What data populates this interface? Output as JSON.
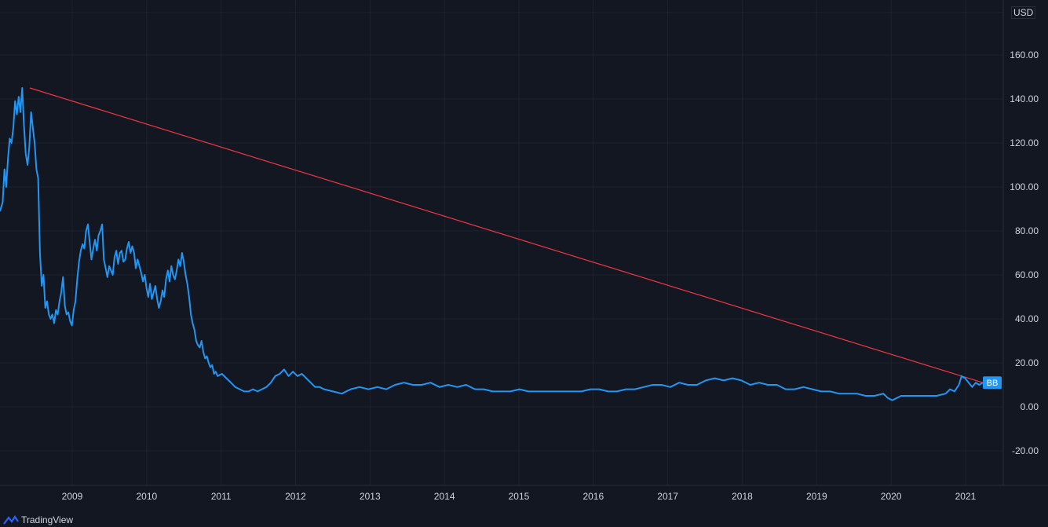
{
  "currency": "USD",
  "ticker_label": "BB",
  "watermark": "TradingView",
  "colors": {
    "background": "#131722",
    "grid": "#1e222d",
    "price_line": "#2196f3",
    "trend_line": "#f23645",
    "axis_text": "#d1d4dc",
    "label_bg": "#2196f3"
  },
  "chart_data": {
    "type": "line",
    "y_ticks": [
      -20,
      0,
      20,
      40,
      60,
      80,
      100,
      120,
      140,
      160
    ],
    "ylim": [
      -35,
      182
    ],
    "x_ticks": [
      "2009",
      "2010",
      "2011",
      "2012",
      "2013",
      "2014",
      "2015",
      "2016",
      "2017",
      "2018",
      "2019",
      "2020",
      "2021"
    ],
    "xlim": [
      2008.05,
      2021.5
    ],
    "grid": true,
    "series": [
      {
        "points": [
          [
            2008.05,
            89
          ],
          [
            2008.08,
            93
          ],
          [
            2008.1,
            108
          ],
          [
            2008.12,
            100
          ],
          [
            2008.14,
            113
          ],
          [
            2008.16,
            122
          ],
          [
            2008.18,
            120
          ],
          [
            2008.2,
            127
          ],
          [
            2008.22,
            139
          ],
          [
            2008.24,
            133
          ],
          [
            2008.26,
            141
          ],
          [
            2008.28,
            134
          ],
          [
            2008.3,
            145
          ],
          [
            2008.32,
            128
          ],
          [
            2008.34,
            115
          ],
          [
            2008.36,
            110
          ],
          [
            2008.38,
            118
          ],
          [
            2008.4,
            134
          ],
          [
            2008.42,
            127
          ],
          [
            2008.44,
            120
          ],
          [
            2008.46,
            108
          ],
          [
            2008.48,
            104
          ],
          [
            2008.5,
            70
          ],
          [
            2008.52,
            55
          ],
          [
            2008.54,
            60
          ],
          [
            2008.56,
            45
          ],
          [
            2008.58,
            48
          ],
          [
            2008.6,
            42
          ],
          [
            2008.62,
            40
          ],
          [
            2008.64,
            42
          ],
          [
            2008.66,
            38
          ],
          [
            2008.68,
            44
          ],
          [
            2008.7,
            42
          ],
          [
            2008.72,
            48
          ],
          [
            2008.74,
            52
          ],
          [
            2008.76,
            59
          ],
          [
            2008.78,
            46
          ],
          [
            2008.8,
            42
          ],
          [
            2008.82,
            43
          ],
          [
            2008.84,
            39
          ],
          [
            2008.86,
            37
          ],
          [
            2008.88,
            44
          ],
          [
            2008.9,
            48
          ],
          [
            2008.92,
            58
          ],
          [
            2008.94,
            66
          ],
          [
            2008.96,
            71
          ],
          [
            2008.98,
            74
          ],
          [
            2009.0,
            72
          ],
          [
            2009.02,
            80
          ],
          [
            2009.04,
            83
          ],
          [
            2009.06,
            75
          ],
          [
            2009.08,
            67
          ],
          [
            2009.1,
            72
          ],
          [
            2009.12,
            76
          ],
          [
            2009.14,
            71
          ],
          [
            2009.16,
            78
          ],
          [
            2009.18,
            80
          ],
          [
            2009.2,
            83
          ],
          [
            2009.22,
            67
          ],
          [
            2009.24,
            63
          ],
          [
            2009.26,
            59
          ],
          [
            2009.28,
            64
          ],
          [
            2009.3,
            62
          ],
          [
            2009.32,
            60
          ],
          [
            2009.34,
            68
          ],
          [
            2009.36,
            71
          ],
          [
            2009.38,
            65
          ],
          [
            2009.4,
            70
          ],
          [
            2009.42,
            71
          ],
          [
            2009.44,
            66
          ],
          [
            2009.46,
            67
          ],
          [
            2009.48,
            72
          ],
          [
            2009.5,
            75
          ],
          [
            2009.52,
            70
          ],
          [
            2009.54,
            73
          ],
          [
            2009.56,
            70
          ],
          [
            2009.58,
            63
          ],
          [
            2009.6,
            67
          ],
          [
            2009.62,
            64
          ],
          [
            2009.64,
            61
          ],
          [
            2009.66,
            57
          ],
          [
            2009.68,
            60
          ],
          [
            2009.7,
            54
          ],
          [
            2009.72,
            50
          ],
          [
            2009.74,
            56
          ],
          [
            2009.76,
            49
          ],
          [
            2009.78,
            52
          ],
          [
            2009.8,
            55
          ],
          [
            2009.82,
            49
          ],
          [
            2009.84,
            45
          ],
          [
            2009.86,
            48
          ],
          [
            2009.88,
            53
          ],
          [
            2009.9,
            50
          ],
          [
            2009.92,
            58
          ],
          [
            2009.94,
            62
          ],
          [
            2009.96,
            57
          ],
          [
            2009.98,
            64
          ],
          [
            2010.0,
            60
          ],
          [
            2010.02,
            58
          ],
          [
            2010.04,
            62
          ],
          [
            2010.06,
            67
          ],
          [
            2010.08,
            64
          ],
          [
            2010.1,
            70
          ],
          [
            2010.12,
            66
          ],
          [
            2010.14,
            60
          ],
          [
            2010.16,
            56
          ],
          [
            2010.18,
            50
          ],
          [
            2010.2,
            42
          ],
          [
            2010.22,
            38
          ],
          [
            2010.24,
            35
          ],
          [
            2010.26,
            30
          ],
          [
            2010.28,
            28
          ],
          [
            2010.3,
            27
          ],
          [
            2010.32,
            30
          ],
          [
            2010.34,
            25
          ],
          [
            2010.36,
            22
          ],
          [
            2010.38,
            23
          ],
          [
            2010.4,
            20
          ],
          [
            2010.42,
            18
          ],
          [
            2010.44,
            19
          ],
          [
            2010.46,
            15
          ],
          [
            2010.48,
            16
          ],
          [
            2010.5,
            14
          ],
          [
            2010.55,
            15
          ],
          [
            2010.6,
            13
          ],
          [
            2010.65,
            11
          ],
          [
            2010.7,
            9
          ],
          [
            2010.75,
            8
          ],
          [
            2010.8,
            7
          ],
          [
            2010.85,
            7
          ],
          [
            2010.9,
            8
          ],
          [
            2010.95,
            7
          ],
          [
            2011.0,
            8
          ],
          [
            2011.05,
            9
          ],
          [
            2011.1,
            11
          ],
          [
            2011.15,
            14
          ],
          [
            2011.2,
            15
          ],
          [
            2011.25,
            17
          ],
          [
            2011.3,
            14
          ],
          [
            2011.35,
            16
          ],
          [
            2011.4,
            14
          ],
          [
            2011.45,
            15
          ],
          [
            2011.5,
            13
          ],
          [
            2011.55,
            11
          ],
          [
            2011.6,
            9
          ],
          [
            2011.65,
            9
          ],
          [
            2011.7,
            8
          ],
          [
            2011.8,
            7
          ],
          [
            2011.9,
            6
          ],
          [
            2012.0,
            8
          ],
          [
            2012.1,
            9
          ],
          [
            2012.2,
            8
          ],
          [
            2012.3,
            9
          ],
          [
            2012.4,
            8
          ],
          [
            2012.5,
            10
          ],
          [
            2012.6,
            11
          ],
          [
            2012.7,
            10
          ],
          [
            2012.8,
            10
          ],
          [
            2012.9,
            11
          ],
          [
            2013.0,
            9
          ],
          [
            2013.1,
            10
          ],
          [
            2013.2,
            9
          ],
          [
            2013.3,
            10
          ],
          [
            2013.4,
            8
          ],
          [
            2013.5,
            8
          ],
          [
            2013.6,
            7
          ],
          [
            2013.7,
            7
          ],
          [
            2013.8,
            7
          ],
          [
            2013.9,
            8
          ],
          [
            2014.0,
            7
          ],
          [
            2014.1,
            7
          ],
          [
            2014.2,
            7
          ],
          [
            2014.3,
            7
          ],
          [
            2014.4,
            7
          ],
          [
            2014.5,
            7
          ],
          [
            2014.6,
            7
          ],
          [
            2014.7,
            8
          ],
          [
            2014.8,
            8
          ],
          [
            2014.9,
            7
          ],
          [
            2015.0,
            7
          ],
          [
            2015.1,
            8
          ],
          [
            2015.2,
            8
          ],
          [
            2015.3,
            9
          ],
          [
            2015.4,
            10
          ],
          [
            2015.5,
            10
          ],
          [
            2015.6,
            9
          ],
          [
            2015.7,
            11
          ],
          [
            2015.8,
            10
          ],
          [
            2015.9,
            10
          ],
          [
            2016.0,
            12
          ],
          [
            2016.1,
            13
          ],
          [
            2016.2,
            12
          ],
          [
            2016.3,
            13
          ],
          [
            2016.4,
            12
          ],
          [
            2016.5,
            10
          ],
          [
            2016.6,
            11
          ],
          [
            2016.7,
            10
          ],
          [
            2016.8,
            10
          ],
          [
            2016.9,
            8
          ],
          [
            2017.0,
            8
          ],
          [
            2017.1,
            9
          ],
          [
            2017.2,
            8
          ],
          [
            2017.3,
            7
          ],
          [
            2017.4,
            7
          ],
          [
            2017.5,
            6
          ],
          [
            2017.6,
            6
          ],
          [
            2017.7,
            6
          ],
          [
            2017.8,
            5
          ],
          [
            2017.9,
            5
          ],
          [
            2018.0,
            6
          ],
          [
            2018.05,
            4
          ],
          [
            2018.1,
            3
          ],
          [
            2018.15,
            4
          ],
          [
            2018.2,
            5
          ],
          [
            2018.3,
            5
          ],
          [
            2018.4,
            5
          ],
          [
            2018.5,
            5
          ],
          [
            2018.6,
            5
          ],
          [
            2018.7,
            6
          ],
          [
            2018.75,
            8
          ],
          [
            2018.8,
            7
          ],
          [
            2018.85,
            10
          ],
          [
            2018.88,
            14
          ],
          [
            2018.92,
            13
          ],
          [
            2018.96,
            11
          ],
          [
            2019.0,
            9
          ],
          [
            2019.04,
            11
          ],
          [
            2019.08,
            10
          ],
          [
            2019.12,
            11
          ]
        ]
      }
    ],
    "trend_line": {
      "points": [
        [
          2008.3,
          145
        ],
        [
          2021.2,
          11
        ]
      ]
    }
  }
}
